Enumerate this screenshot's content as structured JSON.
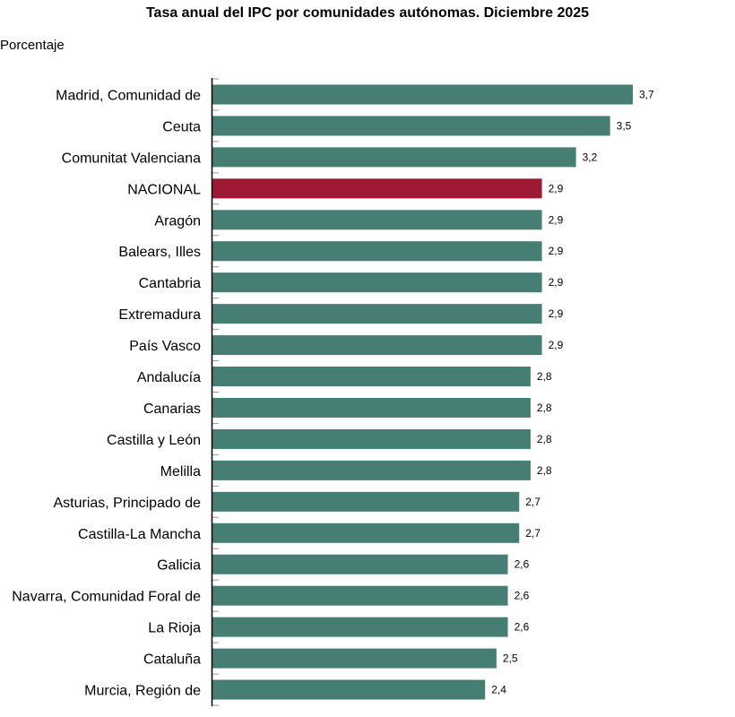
{
  "chart_data": {
    "type": "bar",
    "orientation": "horizontal",
    "title": "Tasa anual del IPC por comunidades autónomas. Diciembre 2025",
    "ylabel": "Porcentaje",
    "categories": [
      "Madrid, Comunidad de",
      "Ceuta",
      "Comunitat Valenciana",
      "NACIONAL",
      "Aragón",
      "Balears, Illes",
      "Cantabria",
      "Extremadura",
      "País Vasco",
      "Andalucía",
      "Canarias",
      "Castilla y León",
      "Melilla",
      "Asturias, Principado de",
      "Castilla-La Mancha",
      "Galicia",
      "Navarra, Comunidad Foral de",
      "La Rioja",
      "Cataluña",
      "Murcia, Región de"
    ],
    "values": [
      3.7,
      3.5,
      3.2,
      2.9,
      2.9,
      2.9,
      2.9,
      2.9,
      2.9,
      2.8,
      2.8,
      2.8,
      2.8,
      2.7,
      2.7,
      2.6,
      2.6,
      2.6,
      2.5,
      2.4
    ],
    "value_labels": [
      "3,7",
      "3,5",
      "3,2",
      "2,9",
      "2,9",
      "2,9",
      "2,9",
      "2,9",
      "2,9",
      "2,8",
      "2,8",
      "2,8",
      "2,8",
      "2,7",
      "2,7",
      "2,6",
      "2,6",
      "2,6",
      "2,5",
      "2,4"
    ],
    "xlim": [
      0,
      3.7
    ],
    "grid": false,
    "colors": {
      "default": "#467e74",
      "highlight": "#9e1a34",
      "highlight_category": "NACIONAL"
    }
  }
}
